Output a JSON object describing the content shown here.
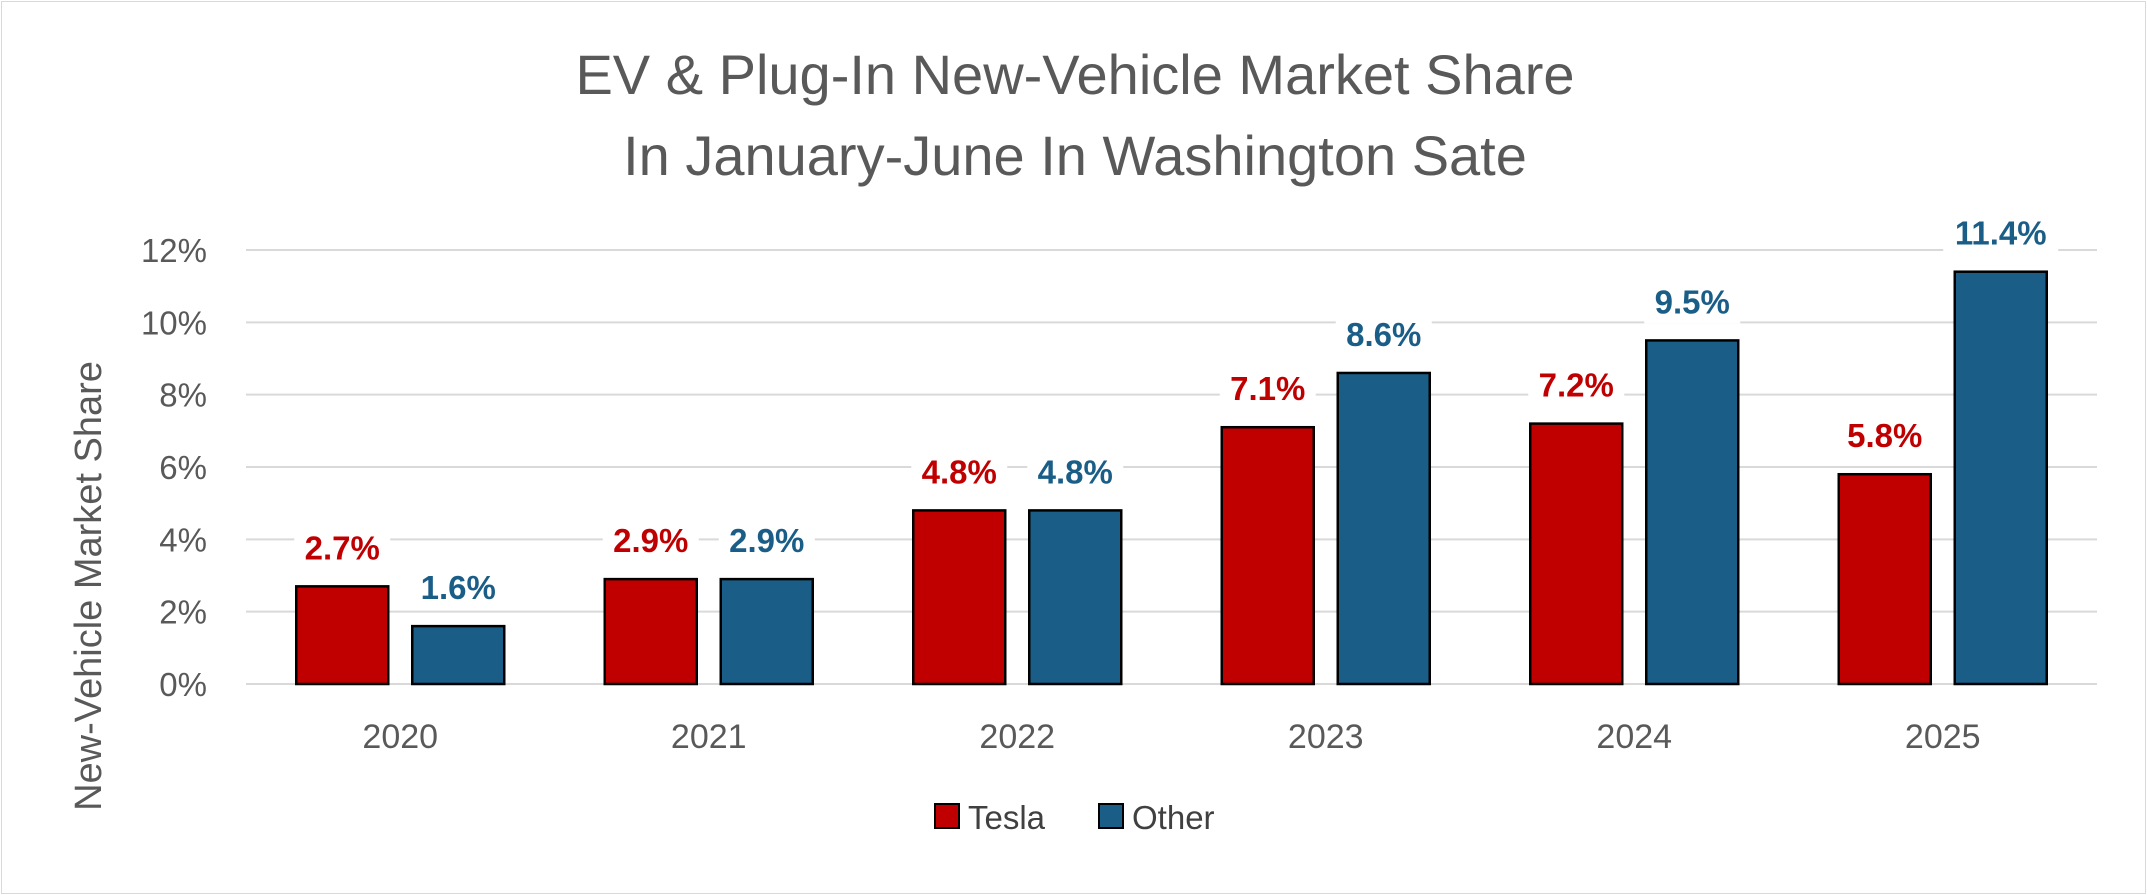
{
  "chart_data": {
    "type": "bar",
    "title": "EV & Plug-In New-Vehicle Market Share",
    "subtitle": "In January-June In Washington Sate",
    "xlabel": "",
    "ylabel": "New-Vehicle Market Share",
    "categories": [
      "2020",
      "2021",
      "2022",
      "2023",
      "2024",
      "2025"
    ],
    "series": [
      {
        "name": "Tesla",
        "color": "#c00000",
        "label_color": "#c00000",
        "values": [
          2.7,
          2.9,
          4.8,
          7.1,
          7.2,
          5.8
        ]
      },
      {
        "name": "Other",
        "color": "#1a5e87",
        "label_color": "#1a5e87",
        "values": [
          1.6,
          2.9,
          4.8,
          8.6,
          9.5,
          11.4
        ]
      }
    ],
    "ylim": [
      0,
      12
    ],
    "yticks": [
      0,
      2,
      4,
      6,
      8,
      10,
      12
    ],
    "ytick_labels": [
      "0%",
      "2%",
      "4%",
      "6%",
      "8%",
      "10%",
      "12%"
    ],
    "value_labels": [
      [
        "2.7%",
        "2.9%",
        "4.8%",
        "7.1%",
        "7.2%",
        "5.8%"
      ],
      [
        "1.6%",
        "2.9%",
        "4.8%",
        "8.6%",
        "9.5%",
        "11.4%"
      ]
    ],
    "grid": true,
    "legend_position": "bottom"
  }
}
